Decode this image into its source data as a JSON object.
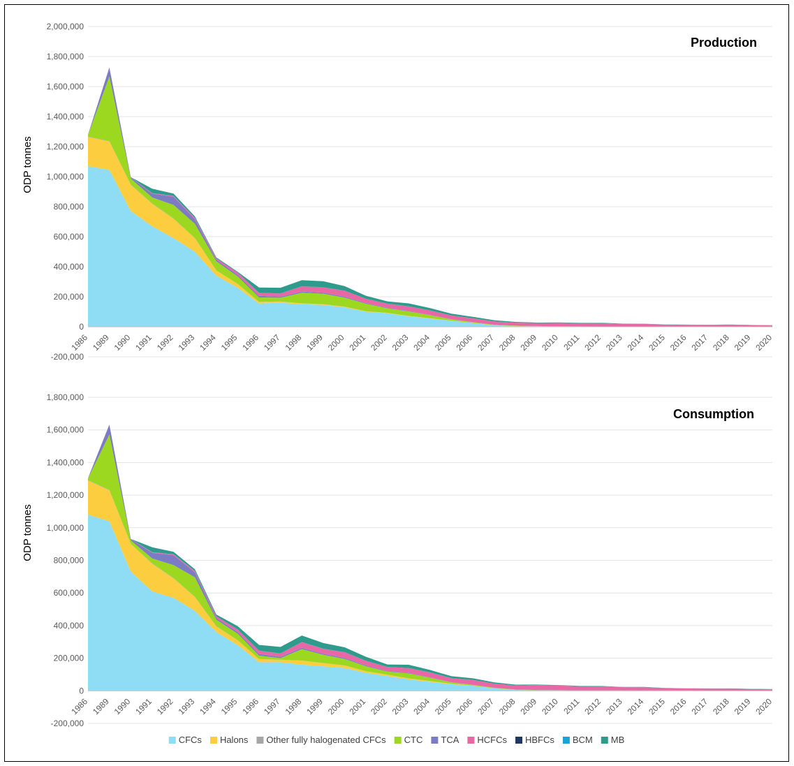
{
  "colors": {
    "CFCs": "#8fdcf5",
    "Halons": "#fbcd3f",
    "Other fully halogenated CFCs": "#a6a6a6",
    "CTC": "#9bd81f",
    "TCA": "#7c7cc4",
    "HCFCs": "#e868a6",
    "HBFCs": "#1f3864",
    "BCM": "#1aa3d6",
    "MB": "#2f9b8c"
  },
  "legend": [
    "CFCs",
    "Halons",
    "Other fully halogenated CFCs",
    "CTC",
    "TCA",
    "HCFCs",
    "HBFCs",
    "BCM",
    "MB"
  ],
  "chart_data": [
    {
      "type": "area",
      "stacked": true,
      "title": "Production",
      "ylabel": "ODP tonnes",
      "xlabel": "",
      "ylim": [
        -200000,
        2000000
      ],
      "yticks": [
        "-200,000",
        "0",
        "200,000",
        "400,000",
        "600,000",
        "800,000",
        "1,000,000",
        "1,200,000",
        "1,400,000",
        "1,600,000",
        "1,800,000",
        "2,000,000"
      ],
      "x": [
        "1986",
        "1989",
        "1990",
        "1991",
        "1992",
        "1993",
        "1994",
        "1995",
        "1996",
        "1997",
        "1998",
        "1999",
        "2000",
        "2001",
        "2002",
        "2003",
        "2004",
        "2005",
        "2006",
        "2007",
        "2008",
        "2009",
        "2010",
        "2011",
        "2012",
        "2013",
        "2014",
        "2015",
        "2016",
        "2017",
        "2018",
        "2019",
        "2020"
      ],
      "series": [
        {
          "name": "CFCs",
          "values": [
            1070000,
            1045000,
            770000,
            670000,
            590000,
            500000,
            340000,
            260000,
            155000,
            160000,
            150000,
            145000,
            130000,
            100000,
            90000,
            70000,
            55000,
            40000,
            25000,
            10000,
            5000,
            3000,
            2000,
            1500,
            1000,
            800,
            600,
            500,
            400,
            300,
            300,
            200,
            200
          ]
        },
        {
          "name": "Halons",
          "values": [
            195000,
            190000,
            175000,
            150000,
            130000,
            90000,
            35000,
            25000,
            10000,
            8000,
            6000,
            5000,
            4000,
            3000,
            2500,
            2000,
            1500,
            1000,
            500,
            300,
            200,
            100,
            100,
            100,
            100,
            100,
            100,
            100,
            100,
            100,
            100,
            100,
            100
          ]
        },
        {
          "name": "Other fully halogenated CFCs",
          "values": [
            2000,
            2000,
            2000,
            1500,
            1500,
            1000,
            1000,
            500,
            500,
            500,
            500,
            500,
            500,
            300,
            300,
            300,
            200,
            200,
            100,
            100,
            100,
            100,
            100,
            100,
            100,
            100,
            100,
            100,
            100,
            100,
            100,
            100,
            100
          ]
        },
        {
          "name": "CTC",
          "values": [
            10000,
            430000,
            40000,
            40000,
            90000,
            95000,
            60000,
            50000,
            30000,
            25000,
            70000,
            70000,
            60000,
            50000,
            30000,
            30000,
            20000,
            8000,
            5000,
            3000,
            2000,
            1500,
            1500,
            1000,
            1000,
            1000,
            1000,
            800,
            800,
            700,
            700,
            600,
            500
          ]
        },
        {
          "name": "TCA",
          "values": [
            2000,
            60000,
            8000,
            25000,
            55000,
            30000,
            10000,
            10000,
            10000,
            8000,
            8000,
            7000,
            6000,
            5000,
            3000,
            3000,
            2000,
            1000,
            500,
            300,
            200,
            200,
            100,
            100,
            100,
            100,
            100,
            100,
            100,
            100,
            100,
            100,
            100
          ]
        },
        {
          "name": "HCFCs",
          "values": [
            500,
            1000,
            2000,
            3000,
            5000,
            8000,
            10000,
            15000,
            20000,
            20000,
            35000,
            35000,
            40000,
            28000,
            28000,
            30000,
            30000,
            25000,
            25000,
            22000,
            20000,
            20000,
            22000,
            22000,
            22000,
            17000,
            17000,
            13000,
            12000,
            11000,
            13000,
            10000,
            8000
          ]
        },
        {
          "name": "HBFCs",
          "values": [
            0,
            0,
            0,
            0,
            500,
            1000,
            1000,
            500,
            200,
            100,
            100,
            100,
            100,
            100,
            100,
            100,
            100,
            100,
            0,
            0,
            0,
            0,
            0,
            0,
            0,
            0,
            0,
            0,
            0,
            0,
            0,
            0,
            0
          ]
        },
        {
          "name": "BCM",
          "values": [
            0,
            0,
            0,
            500,
            500,
            500,
            500,
            500,
            500,
            500,
            500,
            500,
            300,
            300,
            200,
            200,
            200,
            100,
            100,
            100,
            100,
            100,
            100,
            100,
            100,
            100,
            100,
            100,
            100,
            100,
            100,
            100,
            100
          ]
        },
        {
          "name": "MB",
          "values": [
            0,
            0,
            0,
            30000,
            15000,
            10000,
            5000,
            5000,
            35000,
            38000,
            40000,
            40000,
            30000,
            20000,
            15000,
            20000,
            15000,
            12000,
            10000,
            8000,
            5000,
            3000,
            3000,
            2000,
            2000,
            1500,
            1500,
            1000,
            1000,
            1000,
            1000,
            1000,
            1000
          ]
        }
      ]
    },
    {
      "type": "area",
      "stacked": true,
      "title": "Consumption",
      "ylabel": "ODP tonnes",
      "xlabel": "",
      "ylim": [
        -200000,
        1800000
      ],
      "yticks": [
        "-200,000",
        "0",
        "200,000",
        "400,000",
        "600,000",
        "800,000",
        "1,000,000",
        "1,200,000",
        "1,400,000",
        "1,600,000",
        "1,800,000"
      ],
      "x": [
        "1986",
        "1989",
        "1990",
        "1991",
        "1992",
        "1993",
        "1994",
        "1995",
        "1996",
        "1997",
        "1998",
        "1999",
        "2000",
        "2001",
        "2002",
        "2003",
        "2004",
        "2005",
        "2006",
        "2007",
        "2008",
        "2009",
        "2010",
        "2011",
        "2012",
        "2013",
        "2014",
        "2015",
        "2016",
        "2017",
        "2018",
        "2019",
        "2020"
      ],
      "series": [
        {
          "name": "CFCs",
          "values": [
            1080000,
            1040000,
            730000,
            610000,
            570000,
            490000,
            360000,
            280000,
            175000,
            175000,
            160000,
            150000,
            140000,
            110000,
            90000,
            70000,
            55000,
            40000,
            30000,
            15000,
            5000,
            3000,
            2000,
            1500,
            1000,
            800,
            600,
            500,
            400,
            300,
            300,
            200,
            200
          ]
        },
        {
          "name": "Halons",
          "values": [
            210000,
            190000,
            170000,
            170000,
            120000,
            85000,
            35000,
            30000,
            20000,
            15000,
            25000,
            20000,
            15000,
            10000,
            8000,
            6000,
            5000,
            3000,
            1000,
            500,
            300,
            200,
            200,
            100,
            100,
            100,
            100,
            100,
            100,
            100,
            100,
            100,
            100
          ]
        },
        {
          "name": "Other fully halogenated CFCs",
          "values": [
            2000,
            2000,
            2000,
            1500,
            1500,
            1000,
            1000,
            500,
            500,
            500,
            500,
            500,
            500,
            300,
            300,
            300,
            200,
            200,
            100,
            100,
            100,
            100,
            100,
            100,
            100,
            100,
            100,
            100,
            100,
            100,
            100,
            100,
            100
          ]
        },
        {
          "name": "CTC",
          "values": [
            10000,
            340000,
            20000,
            30000,
            80000,
            120000,
            40000,
            40000,
            20000,
            10000,
            70000,
            50000,
            40000,
            30000,
            20000,
            30000,
            20000,
            8000,
            5000,
            3000,
            2000,
            1500,
            1500,
            1000,
            1000,
            1000,
            1000,
            800,
            800,
            700,
            700,
            600,
            500
          ]
        },
        {
          "name": "TCA",
          "values": [
            2000,
            60000,
            8000,
            35000,
            60000,
            30000,
            10000,
            10000,
            10000,
            8000,
            8000,
            7000,
            6000,
            5000,
            3000,
            3000,
            2000,
            1000,
            500,
            300,
            200,
            200,
            100,
            100,
            100,
            100,
            100,
            100,
            100,
            100,
            100,
            100,
            100
          ]
        },
        {
          "name": "HCFCs",
          "values": [
            500,
            1000,
            2000,
            3000,
            5000,
            8000,
            10000,
            15000,
            20000,
            20000,
            35000,
            30000,
            35000,
            28000,
            25000,
            30000,
            30000,
            25000,
            30000,
            25000,
            25000,
            30000,
            28000,
            25000,
            25000,
            20000,
            20000,
            15000,
            13000,
            12000,
            12000,
            10000,
            8000
          ]
        },
        {
          "name": "HBFCs",
          "values": [
            0,
            0,
            0,
            0,
            500,
            1000,
            1000,
            500,
            200,
            100,
            100,
            100,
            100,
            100,
            100,
            100,
            100,
            100,
            0,
            0,
            0,
            0,
            0,
            0,
            0,
            0,
            0,
            0,
            0,
            0,
            0,
            0,
            0
          ]
        },
        {
          "name": "BCM",
          "values": [
            0,
            0,
            0,
            500,
            500,
            500,
            500,
            500,
            500,
            500,
            500,
            500,
            300,
            300,
            200,
            200,
            200,
            100,
            100,
            100,
            100,
            100,
            100,
            100,
            100,
            100,
            100,
            100,
            100,
            100,
            100,
            100,
            100
          ]
        },
        {
          "name": "MB",
          "values": [
            0,
            0,
            0,
            30000,
            15000,
            10000,
            10000,
            20000,
            35000,
            40000,
            40000,
            35000,
            30000,
            25000,
            15000,
            20000,
            15000,
            12000,
            10000,
            8000,
            5000,
            3000,
            3000,
            2000,
            2000,
            1500,
            1500,
            1000,
            1000,
            1000,
            1000,
            1000,
            1000
          ]
        }
      ]
    }
  ]
}
